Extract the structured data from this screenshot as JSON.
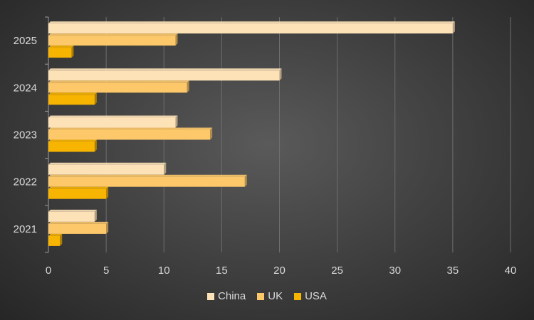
{
  "chart_data": {
    "type": "bar",
    "orientation": "horizontal",
    "categories": [
      "2021",
      "2022",
      "2023",
      "2024",
      "2025"
    ],
    "series": [
      {
        "name": "China",
        "values": [
          4,
          10,
          11,
          20,
          35
        ],
        "color": "#fde2b8"
      },
      {
        "name": "UK",
        "values": [
          5,
          17,
          14,
          12,
          11
        ],
        "color": "#fcc86a"
      },
      {
        "name": "USA",
        "values": [
          1,
          5,
          4,
          4,
          2
        ],
        "color": "#f7b400"
      }
    ],
    "xlim": [
      0,
      40
    ],
    "xticks": [
      0,
      5,
      10,
      15,
      20,
      25,
      30,
      35,
      40
    ],
    "grid": true,
    "legend_position": "bottom",
    "title": "",
    "xlabel": "",
    "ylabel": ""
  }
}
